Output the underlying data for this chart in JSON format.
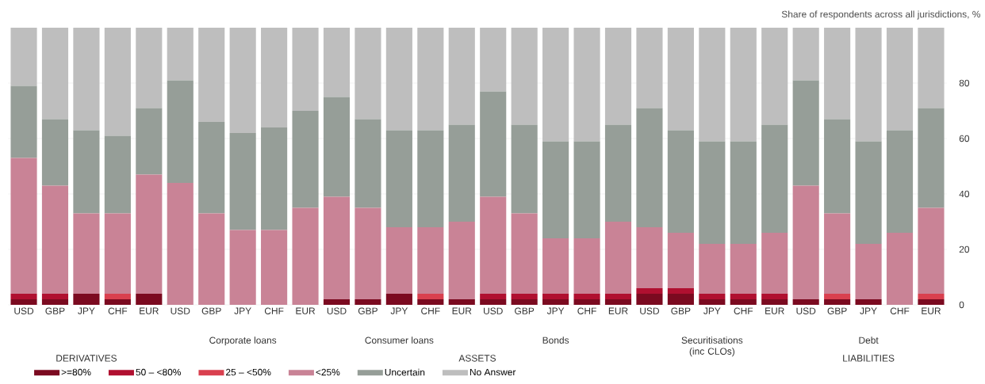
{
  "chart_data": {
    "type": "bar",
    "stacked": true,
    "ylabel": "Share of respondents across all jurisdictions, %",
    "categories": [
      "USD",
      "GBP",
      "JPY",
      "CHF",
      "EUR",
      "USD",
      "GBP",
      "JPY",
      "CHF",
      "EUR",
      "USD",
      "GBP",
      "JPY",
      "CHF",
      "EUR",
      "USD",
      "GBP",
      "JPY",
      "CHF",
      "EUR",
      "USD",
      "GBP",
      "JPY",
      "CHF",
      "EUR",
      "USD",
      "GBP",
      "JPY",
      "CHF",
      "EUR"
    ],
    "series": [
      {
        "name": ">=80%",
        "color": "#7b0a20",
        "values": [
          2,
          2,
          4,
          2,
          4,
          0,
          0,
          0,
          0,
          0,
          2,
          2,
          4,
          2,
          2,
          2,
          2,
          2,
          2,
          2,
          4,
          4,
          2,
          2,
          2,
          2,
          2,
          2,
          0,
          2
        ]
      },
      {
        "name": "50 – <80%",
        "color": "#b01030",
        "values": [
          2,
          2,
          0,
          0,
          0,
          0,
          0,
          0,
          0,
          0,
          0,
          0,
          0,
          0,
          0,
          2,
          2,
          2,
          2,
          2,
          2,
          2,
          2,
          2,
          2,
          0,
          0,
          0,
          0,
          0
        ]
      },
      {
        "name": "25 – <50%",
        "color": "#d9404f",
        "values": [
          0,
          0,
          0,
          2,
          0,
          0,
          0,
          0,
          0,
          0,
          0,
          0,
          0,
          2,
          0,
          0,
          0,
          0,
          0,
          0,
          0,
          0,
          0,
          0,
          0,
          0,
          2,
          0,
          0,
          2
        ]
      },
      {
        "name": "<25%",
        "color": "#c98396",
        "values": [
          49,
          39,
          29,
          29,
          43,
          44,
          33,
          27,
          27,
          35,
          37,
          33,
          24,
          24,
          28,
          35,
          29,
          20,
          20,
          26,
          22,
          20,
          18,
          18,
          22,
          41,
          29,
          20,
          26,
          31
        ]
      },
      {
        "name": "Uncertain",
        "color": "#969e98",
        "values": [
          26,
          24,
          30,
          28,
          24,
          37,
          33,
          35,
          37,
          35,
          36,
          32,
          35,
          35,
          35,
          38,
          32,
          35,
          35,
          35,
          43,
          37,
          37,
          37,
          39,
          38,
          34,
          37,
          37,
          36
        ]
      },
      {
        "name": "No Answer",
        "color": "#bebebe",
        "values": [
          21,
          33,
          37,
          39,
          29,
          19,
          34,
          38,
          36,
          30,
          25,
          33,
          37,
          37,
          35,
          23,
          35,
          41,
          41,
          35,
          29,
          37,
          41,
          41,
          35,
          19,
          33,
          41,
          37,
          29
        ]
      }
    ],
    "annotations": [
      "DERIVATIVES",
      "Corporate loans",
      "Consumer loans",
      "Bonds",
      "Securitisations (inc CLOs)",
      "Debt",
      "ASSETS",
      "LIABILITIES"
    ],
    "ylim": [
      0,
      100
    ],
    "yticks": [
      0,
      20,
      40,
      60,
      80
    ],
    "grid": "y",
    "legend": "bottom"
  }
}
